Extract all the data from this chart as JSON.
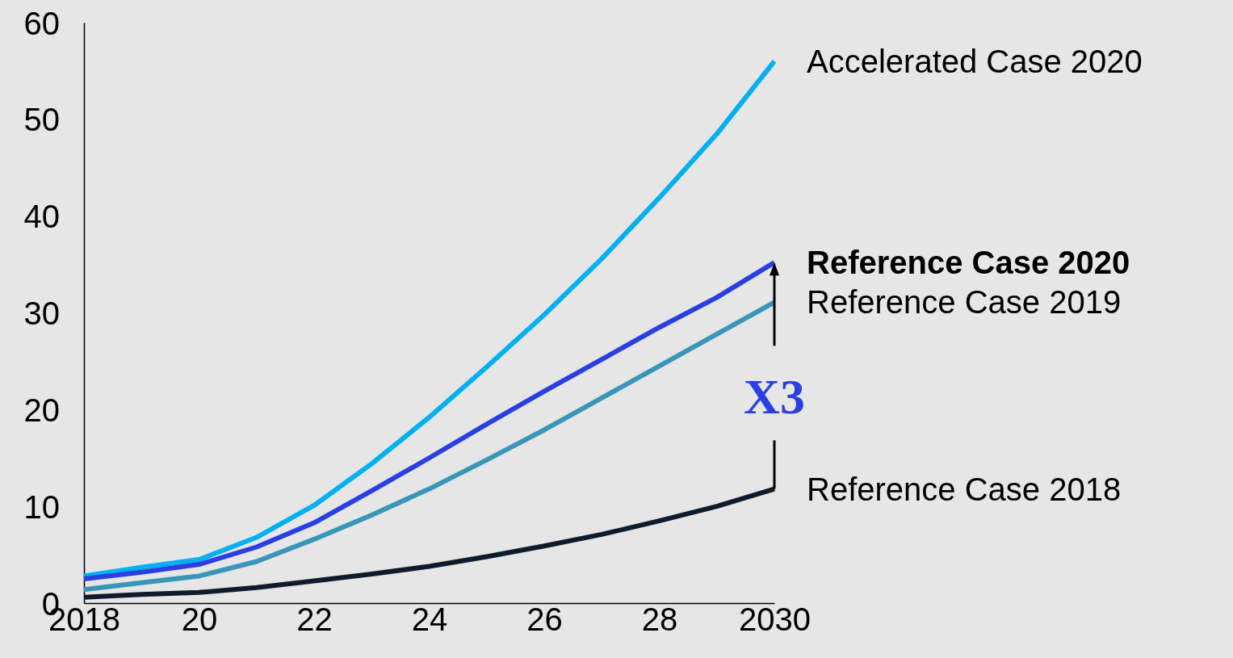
{
  "chart_data": {
    "type": "line",
    "x": [
      2018,
      2019,
      2020,
      2021,
      2022,
      2023,
      2024,
      2025,
      2026,
      2027,
      2028,
      2029,
      2030
    ],
    "series": [
      {
        "name": "Accelerated Case 2020",
        "color": "#00b0f0",
        "values": [
          2.8,
          3.7,
          4.5,
          6.8,
          10.1,
          14.4,
          19.2,
          24.4,
          29.8,
          35.6,
          41.9,
          48.5,
          56
        ]
      },
      {
        "name": "Reference Case 2020",
        "color": "#2a3fe0",
        "values": [
          2.5,
          3.2,
          4.0,
          5.8,
          8.3,
          11.6,
          15,
          18.5,
          21.9,
          25.2,
          28.5,
          31.6,
          35.2
        ]
      },
      {
        "name": "Reference Case 2019",
        "color": "#3a96b8",
        "values": [
          1.4,
          2.1,
          2.8,
          4.3,
          6.6,
          9.1,
          11.8,
          14.8,
          17.9,
          21.2,
          24.5,
          27.8,
          31.1
        ]
      },
      {
        "name": "Reference Case 2018",
        "color": "#0d1b2a",
        "values": [
          0.6,
          0.9,
          1.1,
          1.6,
          2.3,
          3.0,
          3.8,
          4.8,
          5.9,
          7.1,
          8.5,
          10,
          11.8
        ]
      }
    ],
    "xlim": [
      2018,
      2030
    ],
    "xticks": [
      2018,
      {
        "value": 2020,
        "label": "20"
      },
      {
        "value": 2022,
        "label": "22"
      },
      {
        "value": 2024,
        "label": "24"
      },
      {
        "value": 2026,
        "label": "26"
      },
      {
        "value": 2028,
        "label": "28"
      },
      2030
    ],
    "ylim": [
      0,
      60
    ],
    "yticks": [
      0,
      10,
      20,
      30,
      40,
      50,
      60
    ],
    "grid": false,
    "marker": "none",
    "line_style": "solid",
    "annotations": [
      "X3"
    ]
  }
}
